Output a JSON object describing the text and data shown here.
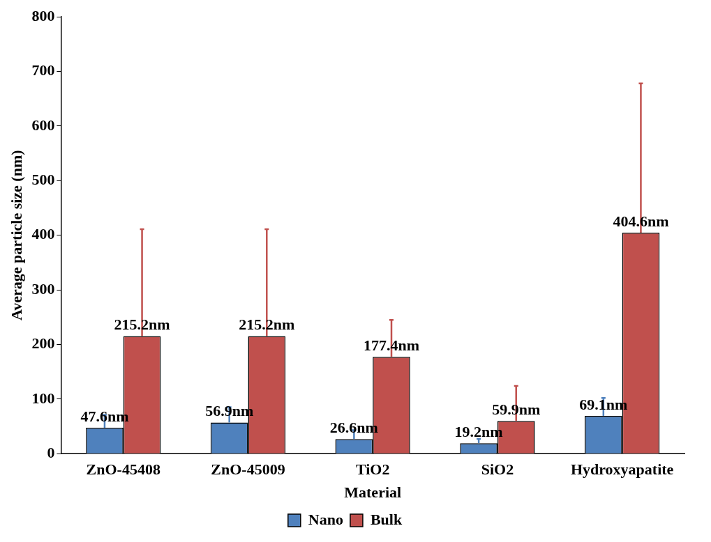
{
  "chart_data": {
    "type": "bar",
    "xlabel": "Material",
    "ylabel": "Average particle size (nm)",
    "categories": [
      "ZnO-45408",
      "ZnO-45009",
      "TiO2",
      "SiO2",
      "Hydroxyapatite"
    ],
    "series": [
      {
        "name": "Nano",
        "color": "#4f81bd",
        "values": [
          47.6,
          56.9,
          26.6,
          19.2,
          69.1
        ],
        "errors": [
          [
            47.6,
            71
          ],
          [
            56.9,
            85
          ],
          [
            26.6,
            43
          ],
          [
            19.2,
            27
          ],
          [
            69.1,
            102
          ]
        ],
        "value_labels": [
          "47.6nm",
          "56.9nm",
          "26.6nm",
          "19.2nm",
          "69.1nm"
        ]
      },
      {
        "name": "Bulk",
        "color": "#c0504d",
        "values": [
          215.2,
          215.2,
          177.4,
          59.9,
          404.6
        ],
        "errors": [
          [
            215.2,
            411
          ],
          [
            215.2,
            411
          ],
          [
            177.4,
            245
          ],
          [
            59.9,
            124
          ],
          [
            404.6,
            678
          ]
        ],
        "value_labels": [
          "215.2nm",
          "215.2nm",
          "177.4nm",
          "59.9nm",
          "404.6nm"
        ]
      }
    ],
    "ylim": [
      0,
      800
    ],
    "yticks": [
      0,
      100,
      200,
      300,
      400,
      500,
      600,
      700,
      800
    ],
    "grid": false,
    "legend": "bottom"
  }
}
